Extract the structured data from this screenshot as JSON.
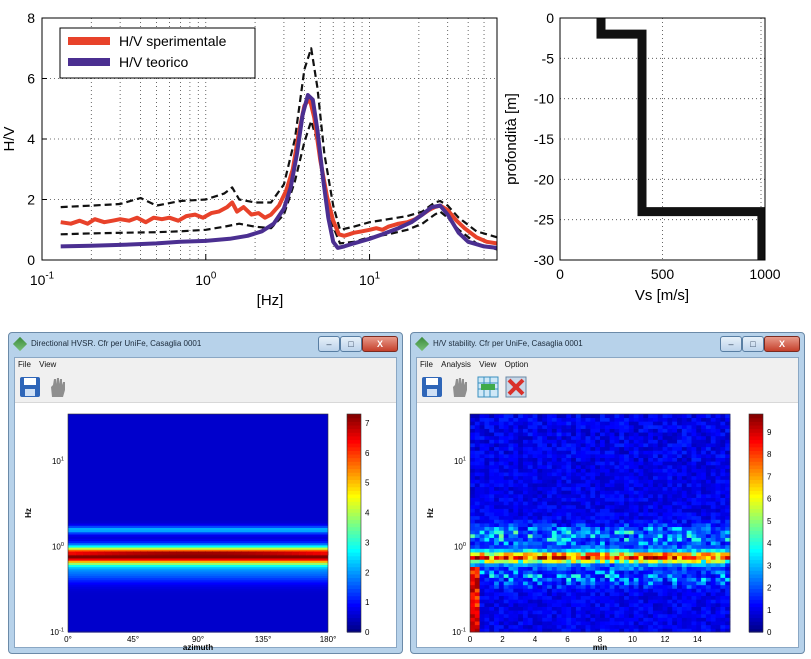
{
  "chart_data": [
    {
      "type": "line",
      "xscale": "log",
      "xlim": [
        0.1,
        60
      ],
      "ylim": [
        0,
        8
      ],
      "xlabel": "[Hz]",
      "ylabel": "H/V",
      "xtick_labels": [
        [
          "10",
          "-1"
        ],
        [
          "10",
          "0"
        ],
        [
          "10",
          "1"
        ]
      ],
      "yticks": [
        0,
        2,
        4,
        6,
        8
      ],
      "grid": "dotted",
      "legend_position": "top-left",
      "series": [
        {
          "name": "H/V sperimentale",
          "color": "#e8422a",
          "x": [
            0.13,
            0.15,
            0.17,
            0.19,
            0.21,
            0.24,
            0.27,
            0.3,
            0.34,
            0.38,
            0.43,
            0.48,
            0.54,
            0.6,
            0.68,
            0.76,
            0.86,
            0.96,
            1.08,
            1.2,
            1.35,
            1.45,
            1.55,
            1.7,
            1.9,
            2.1,
            2.3,
            2.5,
            2.8,
            3.1,
            3.4,
            3.7,
            4.0,
            4.3,
            4.6,
            5.0,
            5.5,
            6.0,
            6.5,
            7.0,
            7.5,
            8.0,
            9.0,
            10,
            11,
            12,
            13,
            14,
            15,
            17,
            19,
            21,
            23,
            25,
            27,
            30,
            34,
            38,
            45,
            52,
            60
          ],
          "y": [
            1.25,
            1.2,
            1.3,
            1.2,
            1.35,
            1.25,
            1.3,
            1.35,
            1.3,
            1.4,
            1.25,
            1.4,
            1.35,
            1.4,
            1.3,
            1.45,
            1.5,
            1.4,
            1.55,
            1.6,
            1.75,
            1.9,
            1.6,
            1.75,
            1.5,
            1.55,
            1.4,
            1.5,
            1.8,
            2.3,
            3.0,
            4.2,
            5.1,
            5.35,
            4.7,
            3.3,
            2.1,
            1.3,
            0.85,
            0.8,
            0.85,
            0.9,
            0.95,
            1.0,
            1.05,
            1.0,
            1.1,
            1.15,
            1.2,
            1.25,
            1.35,
            1.5,
            1.65,
            1.75,
            1.8,
            1.65,
            1.3,
            1.05,
            0.75,
            0.6,
            0.55
          ]
        },
        {
          "name": "H/V teorico",
          "color": "#4b2f91",
          "x": [
            0.13,
            0.2,
            0.3,
            0.5,
            0.7,
            1.0,
            1.4,
            1.8,
            2.2,
            2.6,
            3.0,
            3.3,
            3.6,
            3.9,
            4.2,
            4.5,
            4.8,
            5.2,
            5.6,
            6.0,
            6.4,
            7.0,
            8.0,
            10,
            12,
            15,
            18,
            21,
            24,
            27,
            30,
            35,
            40,
            50,
            60
          ],
          "y": [
            0.45,
            0.47,
            0.5,
            0.55,
            0.6,
            0.63,
            0.7,
            0.8,
            0.95,
            1.2,
            1.7,
            2.4,
            3.5,
            4.8,
            5.45,
            5.3,
            4.3,
            2.7,
            1.4,
            0.6,
            0.4,
            0.45,
            0.55,
            0.7,
            0.85,
            1.05,
            1.25,
            1.5,
            1.75,
            1.8,
            1.5,
            0.9,
            0.6,
            0.45,
            0.4
          ]
        },
        {
          "name": "upper bound",
          "color": "#111111",
          "style": "dashed",
          "x": [
            0.13,
            0.2,
            0.3,
            0.4,
            0.5,
            0.7,
            1.0,
            1.3,
            1.45,
            1.6,
            2.0,
            2.5,
            3.0,
            3.5,
            4.0,
            4.4,
            4.8,
            5.3,
            6.0,
            6.6,
            8.0,
            10,
            13,
            17,
            21,
            25,
            27,
            30,
            35,
            45,
            60
          ],
          "y": [
            1.75,
            1.8,
            1.85,
            2.05,
            1.8,
            1.95,
            2.0,
            2.2,
            2.4,
            2.0,
            1.9,
            1.9,
            2.5,
            4.0,
            6.3,
            7.0,
            5.7,
            3.5,
            1.8,
            1.0,
            1.1,
            1.25,
            1.35,
            1.45,
            1.6,
            1.9,
            1.95,
            1.8,
            1.4,
            0.95,
            0.75
          ]
        },
        {
          "name": "lower bound",
          "color": "#111111",
          "style": "dashed",
          "x": [
            0.13,
            0.2,
            0.3,
            0.5,
            0.7,
            1.0,
            1.3,
            1.6,
            2.0,
            2.5,
            3.0,
            3.5,
            4.0,
            4.4,
            4.8,
            5.3,
            6.0,
            6.6,
            8.0,
            10,
            13,
            17,
            21,
            25,
            27,
            30,
            35,
            45,
            60
          ],
          "y": [
            0.85,
            0.88,
            0.9,
            0.92,
            0.95,
            1.0,
            1.1,
            1.2,
            1.1,
            1.05,
            1.5,
            2.6,
            3.9,
            4.6,
            3.9,
            2.3,
            1.1,
            0.55,
            0.6,
            0.75,
            0.85,
            1.0,
            1.2,
            1.5,
            1.6,
            1.4,
            1.0,
            0.55,
            0.35
          ]
        }
      ]
    },
    {
      "type": "line",
      "xlim": [
        0,
        1000
      ],
      "ylim": [
        -30,
        0
      ],
      "xlabel": "Vs [m/s]",
      "ylabel": "profondità [m]",
      "xticks": [
        0,
        500,
        1000
      ],
      "yticks": [
        0,
        -5,
        -10,
        -15,
        -20,
        -25,
        -30
      ],
      "grid": "dotted",
      "series": [
        {
          "name": "Vs profile",
          "color": "#111111",
          "x": [
            200,
            200,
            400,
            400,
            1000,
            1000
          ],
          "y": [
            0,
            -2,
            -2,
            -24,
            -24,
            -30
          ]
        }
      ]
    },
    {
      "type": "heatmap",
      "title": "Directional HVSR. Cfr per UniFe, Casaglia 0001",
      "xlabel": "azimuth",
      "ylabel": "Hz",
      "xtick_labels": [
        "0°",
        "45°",
        "90°",
        "135°",
        "180°"
      ],
      "ytick_labels": [
        [
          "10",
          "1"
        ],
        [
          "10",
          "0"
        ],
        [
          "10",
          "-1"
        ]
      ],
      "ylim_log10": [
        -1,
        1.55
      ],
      "colorbar_ticks": [
        0,
        1,
        2,
        3,
        4,
        5,
        6,
        7
      ],
      "vmax": 7.3,
      "peak_log10_hz": -0.1,
      "peak_value": 7,
      "secondary_log10_hz": 0.2,
      "secondary_value": 1.7
    },
    {
      "type": "heatmap",
      "title": "H/V stability. Cfr per UniFe, Casaglia 0001",
      "xlabel": "min",
      "ylabel": "Hz",
      "xtick_labels": [
        "0",
        "2",
        "4",
        "6",
        "8",
        "10",
        "12",
        "14"
      ],
      "xlim": [
        0,
        16
      ],
      "ytick_labels": [
        [
          "10",
          "1"
        ],
        [
          "10",
          "0"
        ],
        [
          "10",
          "-1"
        ]
      ],
      "ylim_log10": [
        -1,
        1.55
      ],
      "colorbar_ticks": [
        0,
        1,
        2,
        3,
        4,
        5,
        6,
        7,
        8,
        9
      ],
      "vmax": 9.8,
      "peak_log10_hz": -0.12,
      "columns": 54,
      "rows": 60
    }
  ],
  "windows": {
    "left": {
      "title": "Directional HVSR. Cfr per UniFe, Casaglia 0001",
      "menus": [
        "File",
        "View"
      ],
      "controls": {
        "min": "–",
        "max": "□",
        "close": "X"
      }
    },
    "right": {
      "title": "H/V stability. Cfr per UniFe, Casaglia 0001",
      "menus": [
        "File",
        "Analysis",
        "View",
        "Option"
      ],
      "controls": {
        "min": "–",
        "max": "□",
        "close": "X"
      }
    }
  },
  "colors": {
    "grid": "#444444",
    "window_frame": "#b7d2ea",
    "save_icon": "#2f66b8"
  }
}
